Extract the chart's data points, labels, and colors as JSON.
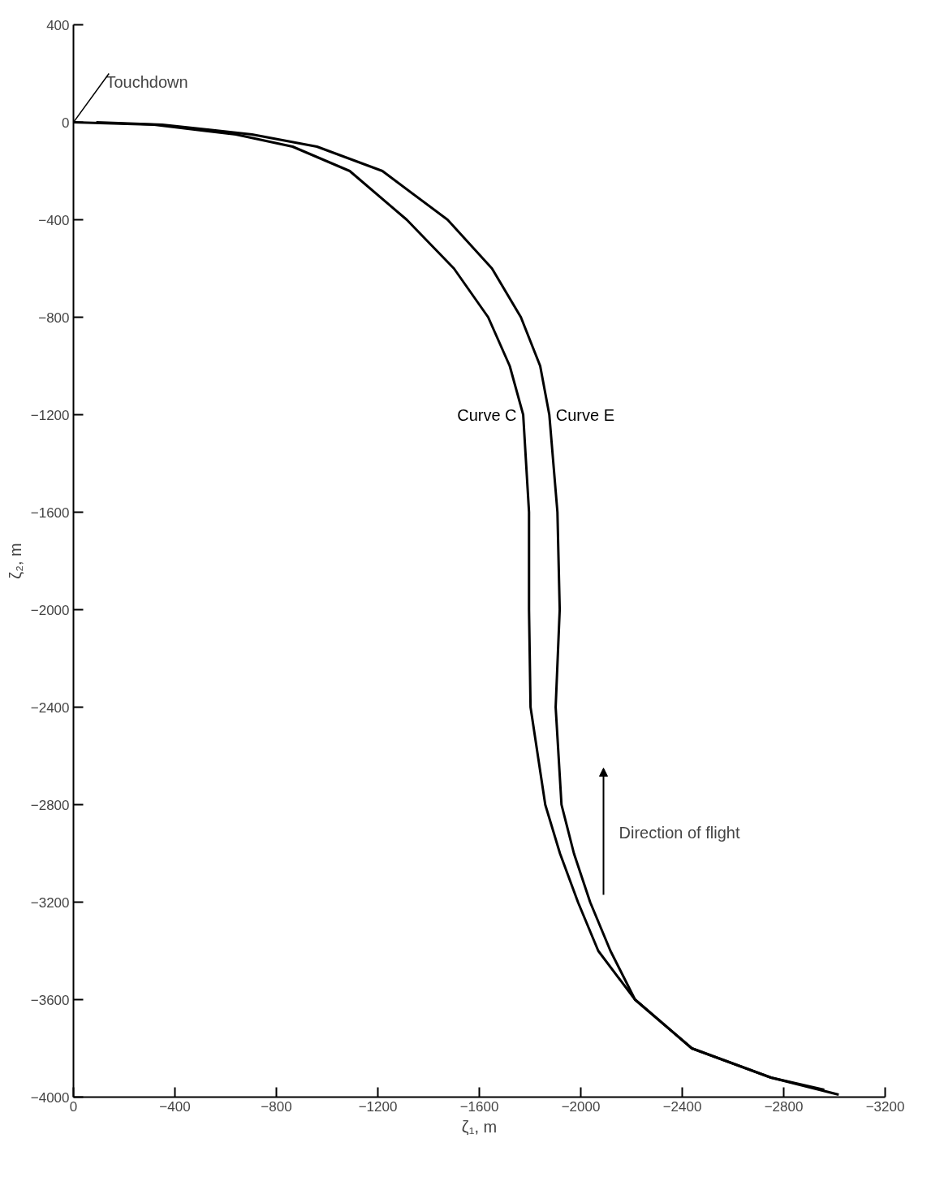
{
  "chart_data": {
    "type": "line",
    "xlabel": "ζ₁, m",
    "ylabel": "ζ₂, m",
    "xlim": [
      0,
      -3200
    ],
    "ylim": [
      -4000,
      400
    ],
    "xticks": [
      0,
      -400,
      -800,
      -1200,
      -1600,
      -2000,
      -2400,
      -2800,
      -3200
    ],
    "yticks": [
      400,
      0,
      -400,
      -800,
      -1200,
      -1600,
      -2000,
      -2400,
      -2800,
      -3200,
      -3600,
      -4000
    ],
    "grid": false,
    "marker": "none",
    "line_style": "solid",
    "series": [
      {
        "name": "Curve C",
        "color": "#000000",
        "x": [
          0,
          -318,
          -640,
          -864,
          -1089,
          -1314,
          -1500,
          -1635,
          -1720,
          -1773,
          -1796,
          -1796,
          -1802,
          -1860,
          -1918,
          -1989,
          -2069,
          -2214,
          -2438,
          -2750,
          -3017
        ],
        "values": [
          0,
          -10,
          -50,
          -100,
          -200,
          -400,
          -600,
          -800,
          -1000,
          -1200,
          -1600,
          -2000,
          -2400,
          -2800,
          -3000,
          -3200,
          -3400,
          -3600,
          -3800,
          -3920,
          -3990
        ]
      },
      {
        "name": "Curve E",
        "color": "#000000",
        "x": [
          -90,
          -350,
          -704,
          -960,
          -1218,
          -1475,
          -1650,
          -1764,
          -1840,
          -1876,
          -1908,
          -1917,
          -1901,
          -1924,
          -1973,
          -2037,
          -2117,
          -2214,
          -2438,
          -2750,
          -2960
        ],
        "values": [
          0,
          -10,
          -50,
          -100,
          -200,
          -400,
          -600,
          -800,
          -1000,
          -1200,
          -1600,
          -2000,
          -2400,
          -2800,
          -3000,
          -3200,
          -3400,
          -3600,
          -3800,
          -3920,
          -3970
        ]
      }
    ],
    "annotations": [
      {
        "text": "Touchdown",
        "x": 0,
        "y": 0
      },
      "Direction of flight"
    ]
  }
}
